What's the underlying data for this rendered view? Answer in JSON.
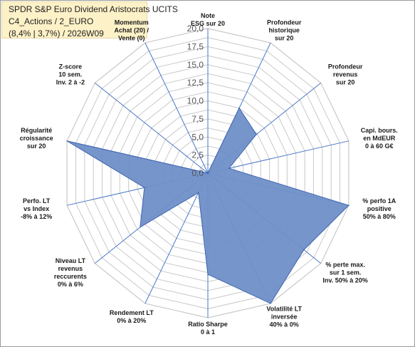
{
  "header": {
    "line1": "SPDR S&P Euro Dividend Aristocrats UCITS",
    "line2": "C4_Actions / 2_EURO",
    "line3": "(8,4% | 3,7%) / 2026W09"
  },
  "chart_data": {
    "type": "radar",
    "rlim": [
      0,
      20
    ],
    "ticks": [
      "0,0",
      "2,5",
      "5,0",
      "7,5",
      "10,0",
      "12,5",
      "15,0",
      "17,5",
      "20,0"
    ],
    "tick_values": [
      0,
      2.5,
      5,
      7.5,
      10,
      12.5,
      15,
      17.5,
      20
    ],
    "grid": true,
    "colors": {
      "fill": "#6f8fc8",
      "stroke": "#3f65b0",
      "spoke": "#4a78c8",
      "grid": "#c9c9c9"
    },
    "axes": [
      {
        "label": [
          "Note",
          "ESG sur 20"
        ],
        "value": 0
      },
      {
        "label": [
          "Profondeur",
          "historique",
          "sur 20"
        ],
        "value": 10
      },
      {
        "label": [
          "Profondeur",
          "revenus",
          "sur 20"
        ],
        "value": 8.6
      },
      {
        "label": [
          "Capi. bours.",
          "en MdEUR",
          "0 à 60 G€"
        ],
        "value": 3
      },
      {
        "label": [
          "% perfo 1A",
          "positive",
          "50% à 80%"
        ],
        "value": 20
      },
      {
        "label": [
          "% perte max.",
          "sur 1 sem.",
          "Inv. 50% à 20%"
        ],
        "value": 17
      },
      {
        "label": [
          "Volatilité LT",
          "inversée",
          "40% à 0%"
        ],
        "value": 20
      },
      {
        "label": [
          "Ratio Sharpe",
          "0 à 1"
        ],
        "value": 14
      },
      {
        "label": [
          "Rendement LT",
          "0% à 20%"
        ],
        "value": 3
      },
      {
        "label": [
          "Niveau LT",
          "revenus",
          "reccurents",
          "0% à 6%"
        ],
        "value": 12
      },
      {
        "label": [
          "Perfo. LT",
          "vs Index",
          "-8% à 12%"
        ],
        "value": 9
      },
      {
        "label": [
          "Régularité",
          "croissance",
          "sur 20"
        ],
        "value": 20
      },
      {
        "label": [
          "Z-score",
          "10 sem.",
          "Inv. 2 à -2"
        ],
        "value": 0
      },
      {
        "label": [
          "Momentum",
          "Achat (20) /",
          "Vente (0)"
        ],
        "value": 0
      }
    ]
  }
}
